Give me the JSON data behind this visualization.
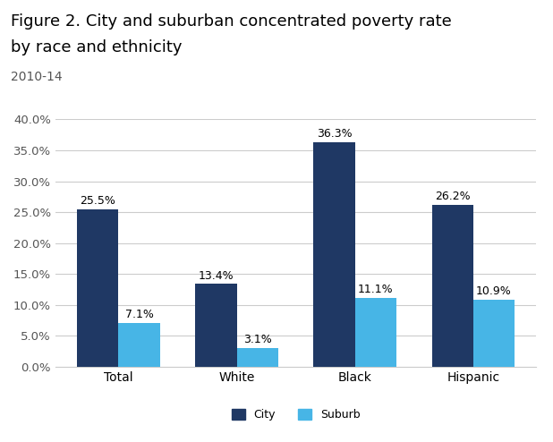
{
  "title_line1": "Figure 2. City and suburban concentrated poverty rate",
  "title_line2": "by race and ethnicity",
  "subtitle": "2010-14",
  "categories": [
    "Total",
    "White",
    "Black",
    "Hispanic"
  ],
  "city_values": [
    25.5,
    13.4,
    36.3,
    26.2
  ],
  "suburb_values": [
    7.1,
    3.1,
    11.1,
    10.9
  ],
  "city_color": "#1F3864",
  "suburb_color": "#47B5E6",
  "ylim": [
    0,
    40
  ],
  "yticks": [
    0,
    5,
    10,
    15,
    20,
    25,
    30,
    35,
    40
  ],
  "ytick_labels": [
    "0.0%",
    "5.0%",
    "10.0%",
    "15.0%",
    "20.0%",
    "25.0%",
    "30.0%",
    "35.0%",
    "40.0%"
  ],
  "legend_city": "City",
  "legend_suburb": "Suburb",
  "bar_width": 0.35,
  "title_fontsize": 13,
  "subtitle_fontsize": 10,
  "tick_fontsize": 9.5,
  "label_fontsize": 9,
  "legend_fontsize": 9,
  "background_color": "#FFFFFF",
  "grid_color": "#CCCCCC"
}
